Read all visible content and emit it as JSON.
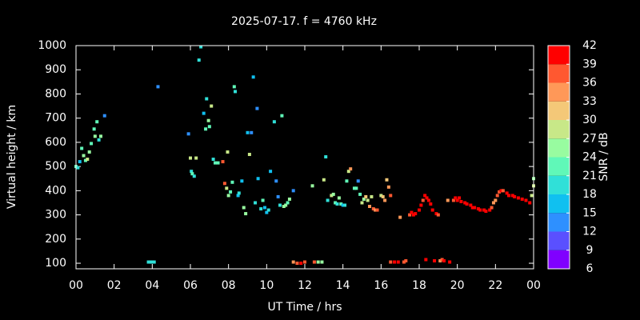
{
  "chart_data": {
    "type": "scatter",
    "title": "2025-07-17. f = 4760 kHz",
    "xlabel": "UT Time / hrs",
    "ylabel": "Virtual height / km",
    "colorbar_label": "SNR / dB",
    "xlim": [
      0,
      24
    ],
    "ylim": [
      77,
      1000
    ],
    "xticks": [
      {
        "value": 0,
        "label": "00"
      },
      {
        "value": 2,
        "label": "02"
      },
      {
        "value": 4,
        "label": "04"
      },
      {
        "value": 6,
        "label": "06"
      },
      {
        "value": 8,
        "label": "08"
      },
      10,
      12,
      14,
      16,
      18,
      20,
      22,
      {
        "value": 24,
        "label": "00"
      }
    ],
    "yticks": [
      100,
      200,
      300,
      400,
      500,
      600,
      700,
      800,
      900,
      1000
    ],
    "colorbar_ticks": [
      6,
      9,
      12,
      15,
      18,
      21,
      24,
      27,
      30,
      33,
      36,
      39,
      42
    ],
    "colorbar_colors": [
      "#8000ff",
      "#5a50ff",
      "#2e90ff",
      "#10c0f0",
      "#30e0d8",
      "#60f8b8",
      "#98fca0",
      "#c8e888",
      "#f4c878",
      "#ff9858",
      "#ff5830",
      "#ff0000"
    ],
    "x": [
      0,
      0.1,
      0.2,
      0.3,
      0.4,
      0.5,
      0.6,
      0.7,
      0.8,
      0.95,
      1,
      1.1,
      1.2,
      1.3,
      1.5,
      3.8,
      3.9,
      4,
      4.1,
      4.3,
      5.9,
      6,
      6.05,
      6.1,
      6.2,
      6.3,
      6.45,
      6.55,
      6.7,
      6.8,
      6.85,
      6.95,
      7,
      7.1,
      7.2,
      7.3,
      7.45,
      7.7,
      7.8,
      7.9,
      7.95,
      8,
      8.1,
      8.2,
      8.3,
      8.35,
      8.5,
      8.55,
      8.7,
      8.8,
      8.9,
      9,
      9.1,
      9.2,
      9.3,
      9.4,
      9.5,
      9.55,
      9.7,
      9.8,
      9.9,
      10,
      10.1,
      10.2,
      10.4,
      10.5,
      10.6,
      10.7,
      10.8,
      10.9,
      11,
      11.1,
      11.2,
      11.4,
      11.4,
      11.6,
      11.8,
      12,
      12.4,
      12.5,
      12.7,
      12.9,
      13,
      13.1,
      13.2,
      13.4,
      13.5,
      13.6,
      13.7,
      13.8,
      13.9,
      14,
      14.1,
      14.2,
      14.3,
      14.4,
      14.6,
      14.7,
      14.8,
      14.9,
      15,
      15.1,
      15.2,
      15.3,
      15.4,
      15.5,
      15.6,
      15.7,
      15.8,
      16,
      16.1,
      16.2,
      16.3,
      16.4,
      16.5,
      16.5,
      16.7,
      16.9,
      17,
      17.2,
      17.3,
      17.5,
      17.6,
      17.7,
      17.8,
      18,
      18.1,
      18.2,
      18.3,
      18.35,
      18.4,
      18.5,
      18.6,
      18.7,
      18.8,
      18.9,
      19,
      19.1,
      19.2,
      19.3,
      19.5,
      19.6,
      19.8,
      19.9,
      20,
      20.1,
      20.2,
      20.4,
      20.5,
      20.7,
      20.8,
      20.9,
      21.1,
      21.2,
      21.4,
      21.5,
      21.7,
      21.8,
      21.9,
      22,
      22.1,
      22.2,
      22.3,
      22.4,
      22.6,
      22.7,
      22.9,
      23,
      23.2,
      23.4,
      23.6,
      23.8,
      23.9,
      24,
      24
    ],
    "values": [
      500,
      495,
      520,
      575,
      545,
      525,
      530,
      560,
      595,
      655,
      625,
      685,
      610,
      625,
      710,
      105,
      105,
      105,
      105,
      830,
      635,
      535,
      480,
      470,
      460,
      535,
      940,
      995,
      720,
      655,
      780,
      690,
      665,
      750,
      530,
      515,
      515,
      520,
      430,
      410,
      560,
      380,
      395,
      435,
      830,
      810,
      380,
      390,
      440,
      330,
      305,
      640,
      550,
      640,
      870,
      350,
      740,
      450,
      325,
      360,
      330,
      310,
      320,
      480,
      685,
      440,
      375,
      340,
      710,
      335,
      340,
      350,
      365,
      400,
      105,
      100,
      100,
      105,
      420,
      105,
      105,
      105,
      445,
      540,
      360,
      380,
      385,
      350,
      345,
      370,
      345,
      340,
      340,
      440,
      480,
      490,
      410,
      410,
      440,
      385,
      350,
      365,
      375,
      360,
      335,
      375,
      325,
      320,
      320,
      380,
      375,
      360,
      445,
      415,
      380,
      105,
      105,
      105,
      290,
      105,
      110,
      300,
      310,
      300,
      305,
      320,
      340,
      360,
      380,
      115,
      370,
      360,
      345,
      320,
      110,
      305,
      300,
      110,
      115,
      110,
      360,
      105,
      360,
      370,
      360,
      370,
      355,
      350,
      345,
      340,
      330,
      330,
      325,
      320,
      320,
      315,
      320,
      330,
      350,
      360,
      380,
      395,
      400,
      400,
      390,
      380,
      380,
      375,
      370,
      365,
      360,
      350,
      380,
      420,
      450
    ],
    "snr": [
      22,
      19,
      16,
      22,
      25,
      22,
      28,
      25,
      22,
      22,
      25,
      22,
      19,
      25,
      13,
      19,
      19,
      19,
      19,
      13,
      13,
      28,
      19,
      22,
      19,
      28,
      19,
      19,
      16,
      22,
      19,
      25,
      22,
      28,
      19,
      22,
      22,
      37,
      37,
      28,
      28,
      25,
      22,
      22,
      22,
      19,
      16,
      19,
      16,
      25,
      25,
      16,
      28,
      13,
      16,
      19,
      13,
      16,
      19,
      22,
      16,
      16,
      19,
      16,
      19,
      13,
      13,
      19,
      22,
      25,
      25,
      22,
      25,
      13,
      34,
      37,
      40,
      37,
      25,
      37,
      25,
      25,
      28,
      19,
      19,
      28,
      25,
      22,
      19,
      25,
      22,
      16,
      19,
      22,
      28,
      34,
      22,
      22,
      13,
      22,
      28,
      25,
      31,
      28,
      34,
      28,
      37,
      34,
      37,
      28,
      31,
      34,
      31,
      34,
      37,
      37,
      40,
      40,
      34,
      37,
      37,
      37,
      40,
      40,
      40,
      40,
      40,
      37,
      40,
      40,
      40,
      40,
      40,
      40,
      40,
      40,
      37,
      34,
      37,
      40,
      34,
      40,
      37,
      40,
      40,
      40,
      40,
      40,
      40,
      40,
      40,
      40,
      40,
      40,
      40,
      40,
      40,
      37,
      34,
      34,
      37,
      37,
      40,
      37,
      40,
      40,
      40,
      40,
      40,
      40,
      40,
      40,
      28,
      28,
      25
    ]
  }
}
